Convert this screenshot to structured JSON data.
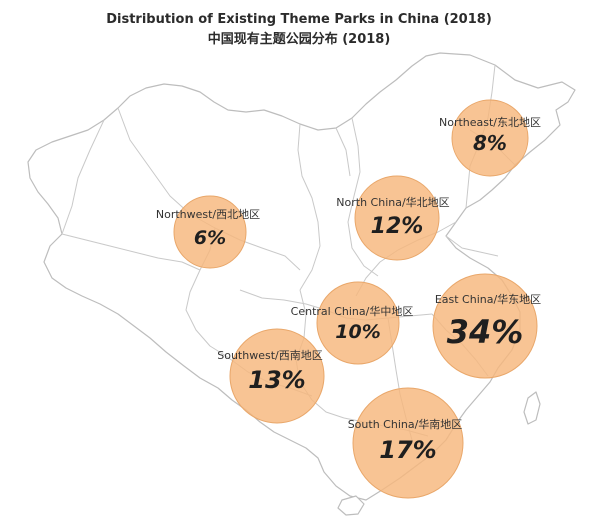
{
  "header": {
    "title_en": "Distribution of Existing Theme Parks in China (2018)",
    "title_zh": "中国现有主题公园分布 (2018)"
  },
  "colors": {
    "bubble_fill": "#f6b77c",
    "bubble_stroke": "#e9a76a",
    "map_line": "#c9c9c9"
  },
  "regions": [
    {
      "id": "northeast",
      "label": "Northeast/东北地区",
      "value": "8%",
      "share": 8
    },
    {
      "id": "north",
      "label": "North  China/华北地区",
      "value": "12%",
      "share": 12
    },
    {
      "id": "northwest",
      "label": "Northwest/西北地区",
      "value": "6%",
      "share": 6
    },
    {
      "id": "central",
      "label": "Central China/华中地区",
      "value": "10%",
      "share": 10
    },
    {
      "id": "east",
      "label": "East China/华东地区",
      "value": "34%",
      "share": 34
    },
    {
      "id": "southwest",
      "label": "Southwest/西南地区",
      "value": "13%",
      "share": 13
    },
    {
      "id": "south",
      "label": "South China/华南地区",
      "value": "17%",
      "share": 17
    }
  ]
}
